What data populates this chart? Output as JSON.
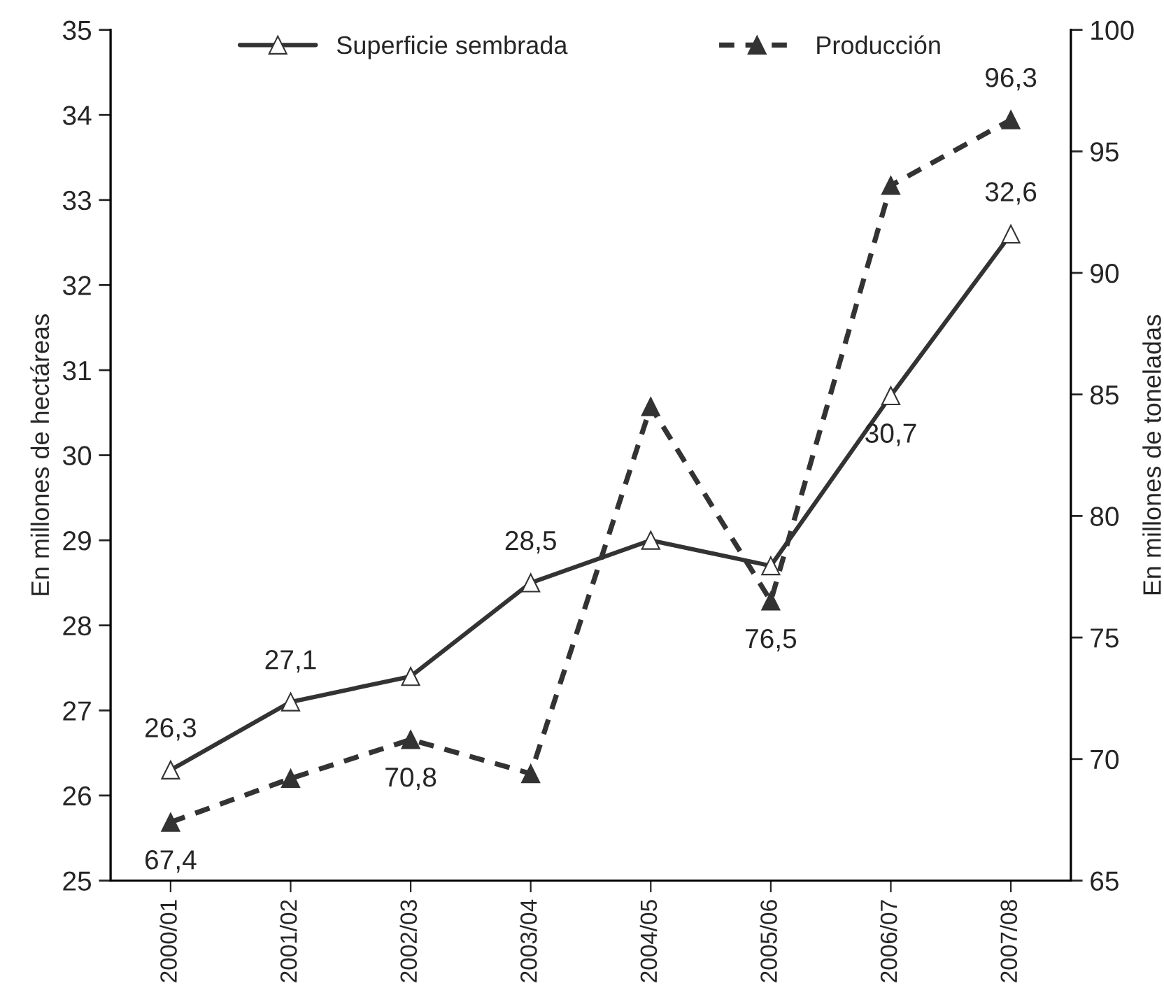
{
  "chart_data": {
    "type": "line",
    "categories": [
      "2000/01",
      "2001/02",
      "2002/03",
      "2003/04",
      "2004/05",
      "2005/06",
      "2006/07",
      "2007/08"
    ],
    "series": [
      {
        "name": "Superficie sembrada",
        "color": "#333333",
        "values": [
          26.3,
          27.1,
          27.4,
          28.5,
          29.0,
          28.7,
          30.7,
          32.6
        ],
        "value_labels": [
          "26,3",
          "27,1",
          null,
          "28,5",
          null,
          null,
          "30,7",
          "32,6"
        ],
        "marker": "triangle",
        "line_style": "solid"
      },
      {
        "name": "Producción",
        "color": "#333333",
        "axis": "y2",
        "values": [
          67.4,
          69.2,
          70.8,
          69.4,
          84.5,
          76.5,
          93.6,
          96.3
        ],
        "value_labels": [
          "67,4",
          null,
          "70,8",
          null,
          null,
          "76,5",
          null,
          "96,3"
        ],
        "marker": "triangle",
        "line_style": "dashed"
      }
    ],
    "ylabel": "En millones de hectáreas",
    "y2label": "En millones de toneladas",
    "ylim": [
      25,
      35
    ],
    "yticks": [
      25,
      26,
      27,
      28,
      29,
      30,
      31,
      32,
      33,
      34,
      35
    ],
    "y2lim": [
      65,
      100
    ],
    "y2ticks": [
      65,
      70,
      75,
      80,
      85,
      90,
      95,
      100
    ],
    "grid": false,
    "legend": "top"
  }
}
